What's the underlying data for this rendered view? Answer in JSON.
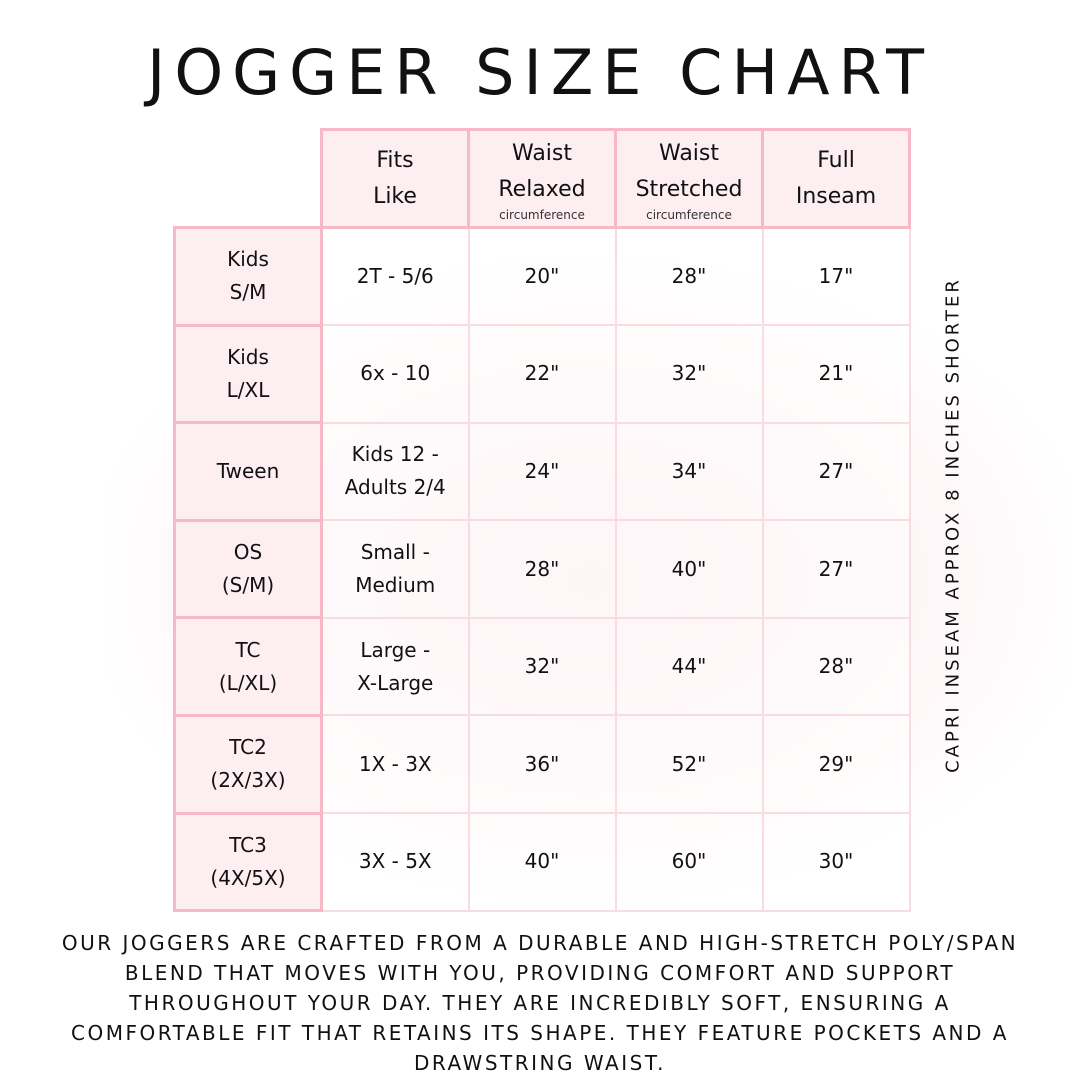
{
  "title": "JOGGER SIZE CHART",
  "headers": [
    {
      "lines": "Fits\nLike",
      "sub": ""
    },
    {
      "lines": "Waist\nRelaxed",
      "sub": "circumference"
    },
    {
      "lines": "Waist\nStretched",
      "sub": "circumference"
    },
    {
      "lines": "Full\nInseam",
      "sub": ""
    }
  ],
  "rows": [
    {
      "size": "Kids\nS/M",
      "fits": "2T - 5/6",
      "relaxed": "20\"",
      "stretched": "28\"",
      "inseam": "17\""
    },
    {
      "size": "Kids\nL/XL",
      "fits": "6x - 10",
      "relaxed": "22\"",
      "stretched": "32\"",
      "inseam": "21\""
    },
    {
      "size": "Tween",
      "fits": "Kids 12 -\nAdults 2/4",
      "relaxed": "24\"",
      "stretched": "34\"",
      "inseam": "27\""
    },
    {
      "size": "OS\n(S/M)",
      "fits": "Small -\nMedium",
      "relaxed": "28\"",
      "stretched": "40\"",
      "inseam": "27\""
    },
    {
      "size": "TC\n(L/XL)",
      "fits": "Large -\nX-Large",
      "relaxed": "32\"",
      "stretched": "44\"",
      "inseam": "28\""
    },
    {
      "size": "TC2\n(2X/3X)",
      "fits": "1X - 3X",
      "relaxed": "36\"",
      "stretched": "52\"",
      "inseam": "29\""
    },
    {
      "size": "TC3\n(4X/5X)",
      "fits": "3X - 5X",
      "relaxed": "40\"",
      "stretched": "60\"",
      "inseam": "30\""
    }
  ],
  "side_note": "CAPRI INSEAM APPROX 8 INCHES SHORTER",
  "description": "Our joggers are crafted from a durable and high-stretch poly/span blend that moves with you, providing comfort and support throughout your day. They are incredibly soft, ensuring a comfortable fit that retains its shape. They feature pockets and a drawstring waist.",
  "colors": {
    "header_fill": "#fdeef2",
    "header_border": "#f7b8c8",
    "cell_border": "#f9dce3"
  }
}
